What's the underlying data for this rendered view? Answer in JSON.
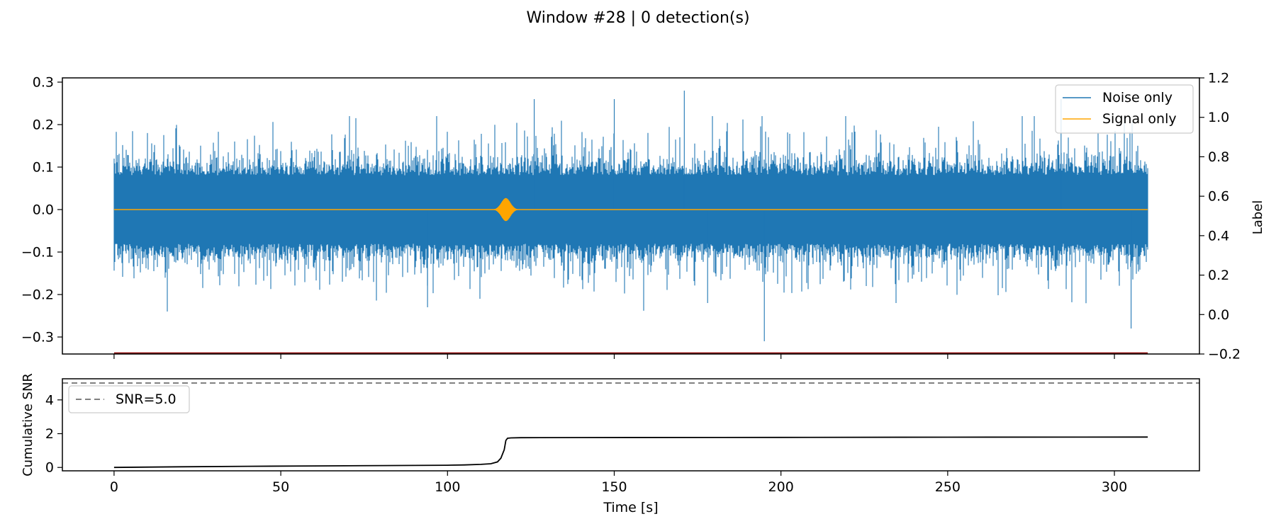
{
  "figure_title": "Window #28 | 0 detection(s)",
  "colors": {
    "noise": "#1f77b4",
    "signal": "#ffa500",
    "label_line": "#8b0000",
    "snr_curve": "#000000",
    "threshold": "#808080",
    "axes": "#000000"
  },
  "chart_data": [
    {
      "type": "line",
      "panel": "waveform",
      "xlim": [
        -15.5,
        325.5
      ],
      "ylim_left": [
        -0.34,
        0.31
      ],
      "ylim_right": [
        -0.2,
        1.2
      ],
      "yticks_left": [
        "0.3",
        "0.2",
        "0.1",
        "0.0",
        "−0.1",
        "−0.2",
        "−0.3"
      ],
      "ytick_values_left": [
        0.3,
        0.2,
        0.1,
        0.0,
        -0.1,
        -0.2,
        -0.3
      ],
      "yticks_right": [
        "1.2",
        "1.0",
        "0.8",
        "0.6",
        "0.4",
        "0.2",
        "0.0",
        "−0.2"
      ],
      "ytick_values_right": [
        1.2,
        1.0,
        0.8,
        0.6,
        0.4,
        0.2,
        0.0,
        -0.2
      ],
      "ylabel_right": "Label",
      "legend_position": "top-right",
      "legend": [
        "Noise only",
        "Signal only"
      ],
      "series": [
        {
          "name": "Noise only",
          "x_range": [
            0,
            310
          ],
          "typical_amplitude": 0.13,
          "peak_max": 0.28,
          "peak_max_x": 171,
          "peak_min": -0.31,
          "peak_min_x": 195
        },
        {
          "name": "Signal only",
          "x_range": [
            0,
            310
          ],
          "burst_center_x": 117.5,
          "burst_peak_amplitude": 0.027,
          "baseline": 0.0
        },
        {
          "name": "label",
          "axis": "right",
          "x": [
            0,
            310
          ],
          "y": [
            -0.2,
            -0.2
          ]
        }
      ]
    },
    {
      "type": "line",
      "panel": "snr",
      "xlim": [
        -15.5,
        325.5
      ],
      "ylim": [
        -0.2,
        5.25
      ],
      "ylabel": "Cumulative SNR",
      "xlabel": "Time [s]",
      "xticks": [
        "0",
        "50",
        "100",
        "150",
        "200",
        "250",
        "300"
      ],
      "xtick_values": [
        0,
        50,
        100,
        150,
        200,
        250,
        300
      ],
      "yticks": [
        "0",
        "2",
        "4"
      ],
      "ytick_values": [
        0,
        2,
        4
      ],
      "legend_position": "top-left",
      "legend": [
        "SNR=5.0"
      ],
      "threshold": 5.0,
      "series": [
        {
          "name": "cumulative_snr",
          "x": [
            0,
            20,
            40,
            60,
            80,
            100,
            105,
            110,
            113,
            115,
            116,
            117,
            117.5,
            118,
            119,
            122,
            140,
            200,
            250,
            310
          ],
          "y": [
            0.0,
            0.04,
            0.07,
            0.09,
            0.11,
            0.13,
            0.15,
            0.18,
            0.22,
            0.33,
            0.55,
            1.05,
            1.6,
            1.73,
            1.75,
            1.76,
            1.77,
            1.78,
            1.79,
            1.8
          ]
        }
      ]
    }
  ]
}
